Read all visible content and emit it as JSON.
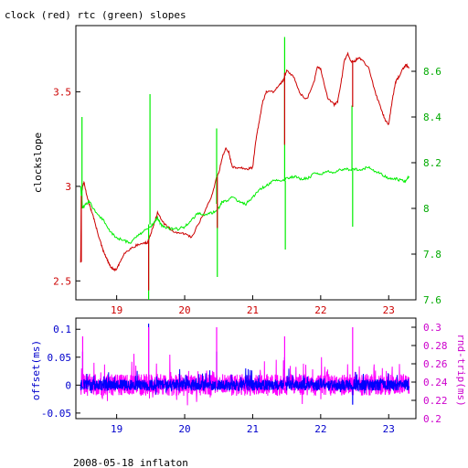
{
  "page": {
    "title": "clock (red) rtc (green) slopes",
    "footer": "2008-05-18 inflaton"
  },
  "colors": {
    "clock": "#cc0000",
    "rtc": "#00ee00",
    "offset": "#0000ff",
    "rtt": "#ff00ff",
    "left_axis_top": "#cc0000",
    "right_axis_top": "#00aa00",
    "bottom_axis_top": "#cc0000",
    "left_axis_bottom": "#0000cc",
    "right_axis_bottom": "#cc00cc",
    "bottom_axis_bottom": "#0000cc"
  },
  "chart_data": [
    {
      "type": "line",
      "ylabel": "clockslope",
      "xlim": [
        18.4,
        23.4
      ],
      "x_ticks": [
        19,
        20,
        21,
        22,
        23
      ],
      "x_tick_labels": [
        "19",
        "20",
        "21",
        "22",
        "23"
      ],
      "ylim": [
        2.4,
        3.85
      ],
      "y_ticks": [
        2.5,
        3,
        3.5
      ],
      "y_tick_labels": [
        "2.5",
        "3",
        "3.5"
      ],
      "y2lim": [
        7.6,
        8.8
      ],
      "y2_ticks": [
        7.6,
        7.8,
        8,
        8.2,
        8.4,
        8.6
      ],
      "y2_tick_labels": [
        "7.6",
        "7.8",
        "8",
        "8.2",
        "8.4",
        "8.6"
      ],
      "grid": false,
      "series": [
        {
          "axis": "left",
          "color": "#cc0000",
          "x": [
            18.47,
            18.48,
            18.5,
            18.52,
            18.55,
            18.6,
            18.65,
            18.7,
            18.75,
            18.8,
            18.85,
            18.9,
            18.95,
            19.0,
            19.05,
            19.1,
            19.2,
            19.3,
            19.4,
            19.45,
            19.5,
            19.55,
            19.6,
            19.7,
            19.8,
            19.9,
            20.0,
            20.1,
            20.2,
            20.3,
            20.4,
            20.47,
            20.5,
            20.55,
            20.6,
            20.65,
            20.7,
            20.8,
            20.9,
            21.0,
            21.05,
            21.1,
            21.15,
            21.2,
            21.3,
            21.4,
            21.45,
            21.5,
            21.6,
            21.7,
            21.8,
            21.9,
            21.95,
            22.0,
            22.1,
            22.2,
            22.25,
            22.3,
            22.35,
            22.4,
            22.45,
            22.5,
            22.55,
            22.6,
            22.7,
            22.8,
            22.9,
            22.95,
            23.0,
            23.05,
            23.1,
            23.15,
            23.2,
            23.25,
            23.3
          ],
          "y": [
            2.6,
            2.95,
            3.0,
            3.02,
            2.97,
            2.9,
            2.85,
            2.78,
            2.72,
            2.66,
            2.62,
            2.58,
            2.56,
            2.56,
            2.6,
            2.64,
            2.67,
            2.69,
            2.7,
            2.7,
            2.75,
            2.8,
            2.86,
            2.8,
            2.77,
            2.75,
            2.75,
            2.73,
            2.8,
            2.87,
            2.95,
            3.05,
            3.07,
            3.15,
            3.2,
            3.18,
            3.1,
            3.1,
            3.09,
            3.1,
            3.25,
            3.35,
            3.45,
            3.5,
            3.5,
            3.54,
            3.56,
            3.61,
            3.58,
            3.49,
            3.46,
            3.55,
            3.63,
            3.62,
            3.47,
            3.43,
            3.45,
            3.55,
            3.67,
            3.7,
            3.66,
            3.66,
            3.68,
            3.67,
            3.63,
            3.5,
            3.4,
            3.35,
            3.33,
            3.45,
            3.55,
            3.58,
            3.62,
            3.64,
            3.63
          ]
        },
        {
          "axis": "right",
          "color": "#00ee00",
          "x": [
            18.47,
            18.48,
            18.5,
            18.55,
            18.6,
            18.7,
            18.8,
            18.9,
            19.0,
            19.1,
            19.2,
            19.3,
            19.4,
            19.5,
            19.55,
            19.6,
            19.65,
            19.7,
            19.8,
            19.9,
            20.0,
            20.1,
            20.2,
            20.3,
            20.4,
            20.5,
            20.55,
            20.6,
            20.7,
            20.8,
            20.9,
            21.0,
            21.1,
            21.2,
            21.3,
            21.4,
            21.5,
            21.6,
            21.7,
            21.8,
            21.9,
            22.0,
            22.1,
            22.2,
            22.3,
            22.4,
            22.5,
            22.6,
            22.7,
            22.8,
            22.9,
            23.0,
            23.1,
            23.2,
            23.25,
            23.3
          ],
          "y": [
            8.1,
            8.05,
            8.0,
            8.02,
            8.03,
            7.98,
            7.95,
            7.9,
            7.87,
            7.86,
            7.85,
            7.88,
            7.9,
            7.92,
            7.94,
            7.96,
            7.93,
            7.92,
            7.91,
            7.91,
            7.92,
            7.95,
            7.98,
            7.97,
            7.98,
            8.0,
            8.03,
            8.03,
            8.05,
            8.03,
            8.02,
            8.05,
            8.08,
            8.1,
            8.12,
            8.12,
            8.13,
            8.14,
            8.13,
            8.13,
            8.15,
            8.15,
            8.16,
            8.16,
            8.17,
            8.17,
            8.17,
            8.17,
            8.18,
            8.16,
            8.15,
            8.13,
            8.13,
            8.12,
            8.12,
            8.14
          ]
        }
      ],
      "spikes": [
        {
          "axis": "right",
          "color": "#00ee00",
          "x": 18.49,
          "from": 8.0,
          "to": 8.4
        },
        {
          "axis": "right",
          "color": "#00ee00",
          "x": 19.49,
          "from": 7.93,
          "to": 8.5
        },
        {
          "axis": "right",
          "color": "#00ee00",
          "x": 19.47,
          "from": 7.93,
          "to": 7.6
        },
        {
          "axis": "right",
          "color": "#00ee00",
          "x": 20.47,
          "from": 8.02,
          "to": 8.35
        },
        {
          "axis": "right",
          "color": "#00ee00",
          "x": 20.48,
          "from": 8.02,
          "to": 7.7
        },
        {
          "axis": "right",
          "color": "#00ee00",
          "x": 21.47,
          "from": 8.12,
          "to": 8.75
        },
        {
          "axis": "right",
          "color": "#00ee00",
          "x": 21.48,
          "from": 8.12,
          "to": 7.82
        },
        {
          "axis": "right",
          "color": "#00ee00",
          "x": 22.46,
          "from": 8.17,
          "to": 8.45
        },
        {
          "axis": "right",
          "color": "#00ee00",
          "x": 22.47,
          "from": 8.17,
          "to": 7.92
        },
        {
          "axis": "left",
          "color": "#cc0000",
          "x": 18.48,
          "from": 2.95,
          "to": 2.6
        },
        {
          "axis": "left",
          "color": "#cc0000",
          "x": 19.47,
          "from": 2.72,
          "to": 2.45
        },
        {
          "axis": "left",
          "color": "#cc0000",
          "x": 20.48,
          "from": 3.05,
          "to": 2.78
        },
        {
          "axis": "left",
          "color": "#cc0000",
          "x": 21.47,
          "from": 3.6,
          "to": 3.22
        },
        {
          "axis": "left",
          "color": "#cc0000",
          "x": 22.47,
          "from": 3.66,
          "to": 3.42
        }
      ]
    },
    {
      "type": "line",
      "ylabel": "offset(ms)",
      "y2label": "rnd-trip(ms)",
      "xlim": [
        18.4,
        23.4
      ],
      "x_ticks": [
        19,
        20,
        21,
        22,
        23
      ],
      "x_tick_labels": [
        "19",
        "20",
        "21",
        "22",
        "23"
      ],
      "ylim": [
        -0.06,
        0.12
      ],
      "y_ticks": [
        -0.05,
        0,
        0.05,
        0.1
      ],
      "y_tick_labels": [
        "-0.05",
        "0",
        "0.05",
        "0.1"
      ],
      "y2lim": [
        0.2,
        0.31
      ],
      "y2_ticks": [
        0.2,
        0.22,
        0.24,
        0.26,
        0.28,
        0.3
      ],
      "y2_tick_labels": [
        "0.2",
        "0.22",
        "0.24",
        "0.26",
        "0.28",
        "0.3"
      ],
      "grid": false,
      "series": [
        {
          "axis": "right",
          "color": "#ff00ff",
          "description": "dense noisy trace",
          "x_range": [
            18.47,
            23.3
          ],
          "baseline": 0.237,
          "amplitude": 0.012,
          "samples": 1400,
          "seed": 7
        },
        {
          "axis": "left",
          "color": "#0000ff",
          "description": "dense noisy trace",
          "x_range": [
            18.47,
            23.3
          ],
          "baseline": 0.0,
          "amplitude": 0.01,
          "samples": 1400,
          "seed": 13
        }
      ],
      "spikes": [
        {
          "axis": "left",
          "color": "#0000ff",
          "x": 18.5,
          "from": 0.0,
          "to": 0.06
        },
        {
          "axis": "left",
          "color": "#0000ff",
          "x": 19.47,
          "from": 0.0,
          "to": 0.11
        },
        {
          "axis": "left",
          "color": "#0000ff",
          "x": 20.47,
          "from": 0.0,
          "to": 0.06
        },
        {
          "axis": "left",
          "color": "#0000ff",
          "x": 21.47,
          "from": 0.0,
          "to": 0.05
        },
        {
          "axis": "left",
          "color": "#0000ff",
          "x": 22.47,
          "from": 0.0,
          "to": -0.035
        },
        {
          "axis": "right",
          "color": "#ff00ff",
          "x": 18.5,
          "from": 0.235,
          "to": 0.29
        },
        {
          "axis": "right",
          "color": "#ff00ff",
          "x": 19.47,
          "from": 0.235,
          "to": 0.3
        },
        {
          "axis": "right",
          "color": "#ff00ff",
          "x": 20.47,
          "from": 0.235,
          "to": 0.3
        },
        {
          "axis": "right",
          "color": "#ff00ff",
          "x": 21.47,
          "from": 0.235,
          "to": 0.29
        },
        {
          "axis": "right",
          "color": "#ff00ff",
          "x": 22.47,
          "from": 0.235,
          "to": 0.3
        }
      ]
    }
  ]
}
